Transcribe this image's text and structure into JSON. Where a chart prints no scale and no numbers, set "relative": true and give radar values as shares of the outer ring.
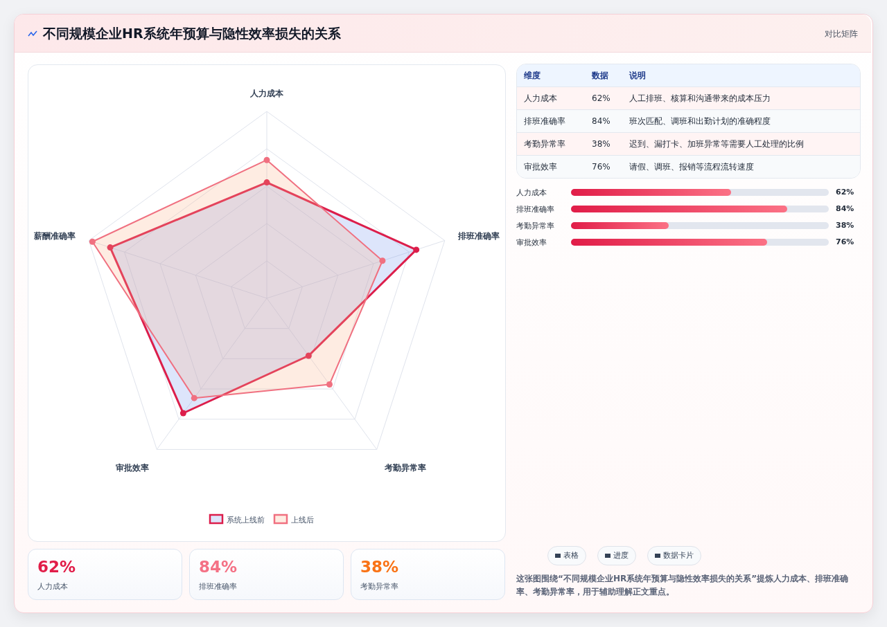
{
  "chart_data": [
    {
      "type": "radar",
      "title": "不同规模企业HR系统年预算与隐性效率损失的关系",
      "annotations": [
        "对比矩阵"
      ],
      "categories": [
        "人力成本",
        "排班准确率",
        "考勤异常率",
        "审批效率",
        "薪酬准确率"
      ],
      "relative": true,
      "legend": "bottom",
      "marker": "circle",
      "series": [
        {
          "name": "系统上线前",
          "color": "#dc1e4b",
          "values": [
            0.62,
            0.84,
            0.38,
            0.76,
            0.88
          ]
        },
        {
          "name": "上线后",
          "color": "#f07080",
          "values": [
            0.74,
            0.65,
            0.57,
            0.66,
            0.98
          ]
        }
      ]
    },
    {
      "type": "other",
      "annotations": [
        "维度",
        "数据",
        "说明",
        "人力成本",
        "62%",
        "人工排班、核算和沟通带来的成本压力",
        "排班准确率",
        "84%",
        "班次匹配、调班和出勤计划的准确程度",
        "考勤异常率",
        "38%",
        "迟到、漏打卡、加班异常等需要人工处理的比例",
        "审批效率",
        "76%",
        "请假、调班、报销等流程流转速度"
      ]
    },
    {
      "type": "bar",
      "orientation": "horizontal",
      "categories": [
        "人力成本",
        "排班准确率",
        "考勤异常率",
        "审批效率"
      ],
      "values": [
        62,
        84,
        38,
        76
      ],
      "value_labels": [
        "62%",
        "84%",
        "38%",
        "76%"
      ],
      "xlim": [
        0,
        100
      ],
      "color": "#e11d48"
    },
    {
      "type": "other",
      "annotations": [
        "62%",
        "人力成本",
        "84%",
        "排班准确率",
        "38%",
        "考勤异常率"
      ],
      "colors": [
        "#e11d48",
        "#f47185",
        "#f97316"
      ]
    },
    {
      "type": "other",
      "annotations": [
        "表格",
        "进度",
        "数据卡片",
        "这张图围绕“不同规模企业HR系统年预算与隐性效率损失的关系”提炼人力成本、排班准确率、考勤异常率，用于辅助理解正文重点。"
      ]
    }
  ]
}
